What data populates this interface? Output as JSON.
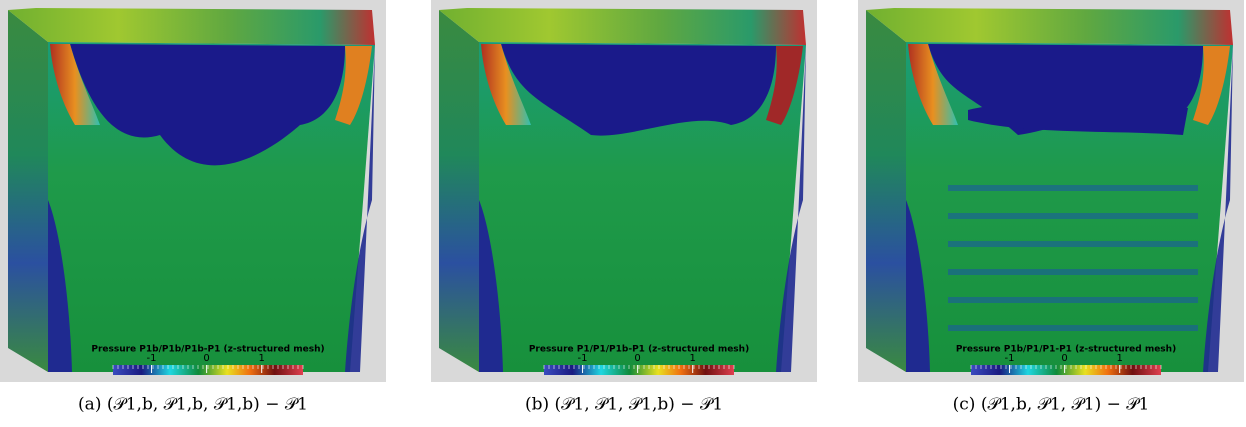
{
  "panels": [
    {
      "colorbar_title": "Pressure P1b/P1b/P1b-P1 (z-structured mesh)",
      "caption": "(a) (𝒫1,b, 𝒫1,b, 𝒫1,b) − 𝒫1"
    },
    {
      "colorbar_title": "Pressure P1/P1/P1b-P1 (z-structured mesh)",
      "caption": "(b) (𝒫1, 𝒫1, 𝒫1,b) − 𝒫1"
    },
    {
      "colorbar_title": "Pressure P1b/P1/P1-P1 (z-structured mesh)",
      "caption": "(c) (𝒫1,b, 𝒫1, 𝒫1) − 𝒫1"
    }
  ],
  "colorbar": {
    "ticks": [
      -1,
      0,
      1
    ],
    "lim": [
      -1.7,
      1.75
    ]
  }
}
